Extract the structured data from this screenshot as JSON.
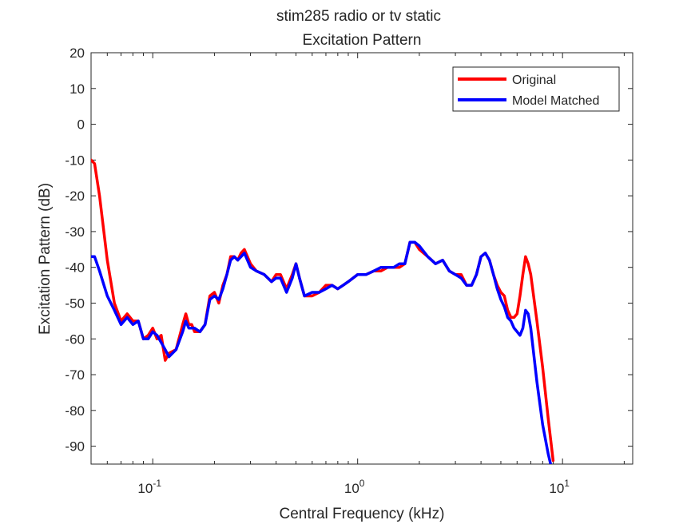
{
  "chart_data": {
    "type": "line",
    "title": "stim285 radio or tv static",
    "subtitle": "Excitation Pattern",
    "xlabel": "Central Frequency (kHz)",
    "ylabel": "Excitation Pattern (dB)",
    "xscale": "log",
    "xlim": [
      0.05,
      22
    ],
    "ylim": [
      -95,
      20
    ],
    "yticks": [
      20,
      10,
      0,
      -10,
      -20,
      -30,
      -40,
      -50,
      -60,
      -70,
      -80,
      -90
    ],
    "xticks": [
      {
        "value": 0.1,
        "base": "10",
        "exp": "-1"
      },
      {
        "value": 1,
        "base": "10",
        "exp": "0"
      },
      {
        "value": 10,
        "base": "10",
        "exp": "1"
      }
    ],
    "grid": false,
    "legend_position": "top-right",
    "series": [
      {
        "name": "Original",
        "color": "#ff0000",
        "x": [
          0.05,
          0.052,
          0.055,
          0.06,
          0.065,
          0.07,
          0.075,
          0.08,
          0.085,
          0.09,
          0.095,
          0.1,
          0.105,
          0.11,
          0.115,
          0.12,
          0.13,
          0.14,
          0.145,
          0.15,
          0.155,
          0.16,
          0.17,
          0.18,
          0.19,
          0.2,
          0.21,
          0.22,
          0.23,
          0.24,
          0.25,
          0.26,
          0.27,
          0.28,
          0.3,
          0.32,
          0.35,
          0.38,
          0.4,
          0.42,
          0.45,
          0.48,
          0.5,
          0.52,
          0.55,
          0.6,
          0.65,
          0.7,
          0.75,
          0.8,
          0.85,
          0.9,
          1.0,
          1.1,
          1.2,
          1.3,
          1.4,
          1.5,
          1.6,
          1.7,
          1.8,
          1.9,
          2.0,
          2.2,
          2.4,
          2.6,
          2.8,
          3.0,
          3.2,
          3.4,
          3.6,
          3.8,
          4.0,
          4.2,
          4.4,
          4.6,
          4.8,
          5.0,
          5.2,
          5.4,
          5.6,
          5.8,
          6.0,
          6.2,
          6.4,
          6.6,
          6.8,
          7.0,
          7.5,
          8.0,
          8.5,
          9.0
        ],
        "y": [
          -10,
          -11,
          -20,
          -38,
          -50,
          -55,
          -53,
          -55,
          -55,
          -60,
          -59,
          -57,
          -60,
          -59,
          -66,
          -64,
          -63,
          -56,
          -53,
          -56,
          -56,
          -58,
          -58,
          -56,
          -48,
          -47,
          -50,
          -45,
          -42,
          -37,
          -37,
          -38,
          -36,
          -35,
          -39,
          -41,
          -42,
          -44,
          -42,
          -42,
          -46,
          -42,
          -39,
          -43,
          -48,
          -48,
          -47,
          -45,
          -45,
          -46,
          -45,
          -44,
          -42,
          -42,
          -41,
          -41,
          -40,
          -40,
          -40,
          -39,
          -33,
          -33,
          -35,
          -37,
          -39,
          -38,
          -41,
          -42,
          -42,
          -45,
          -45,
          -42,
          -37,
          -36,
          -38,
          -42,
          -45,
          -47,
          -48,
          -52,
          -54,
          -54,
          -53,
          -48,
          -42,
          -37,
          -39,
          -42,
          -55,
          -68,
          -82,
          -94
        ]
      },
      {
        "name": "Model Matched",
        "color": "#0000ff",
        "x": [
          0.05,
          0.052,
          0.055,
          0.06,
          0.065,
          0.07,
          0.075,
          0.08,
          0.085,
          0.09,
          0.095,
          0.1,
          0.105,
          0.11,
          0.115,
          0.12,
          0.13,
          0.14,
          0.145,
          0.15,
          0.155,
          0.16,
          0.17,
          0.18,
          0.19,
          0.2,
          0.21,
          0.22,
          0.23,
          0.24,
          0.25,
          0.26,
          0.27,
          0.28,
          0.3,
          0.32,
          0.35,
          0.38,
          0.4,
          0.42,
          0.45,
          0.48,
          0.5,
          0.52,
          0.55,
          0.6,
          0.65,
          0.7,
          0.75,
          0.8,
          0.85,
          0.9,
          1.0,
          1.1,
          1.2,
          1.3,
          1.4,
          1.5,
          1.6,
          1.7,
          1.8,
          1.9,
          2.0,
          2.2,
          2.4,
          2.6,
          2.8,
          3.0,
          3.2,
          3.4,
          3.6,
          3.8,
          4.0,
          4.2,
          4.4,
          4.6,
          4.8,
          5.0,
          5.2,
          5.4,
          5.6,
          5.8,
          6.0,
          6.2,
          6.4,
          6.6,
          6.8,
          7.0,
          7.5,
          8.0,
          8.5,
          9.0
        ],
        "y": [
          -37,
          -37,
          -41,
          -48,
          -52,
          -56,
          -54,
          -56,
          -55,
          -60,
          -60,
          -58,
          -59,
          -61,
          -63,
          -65,
          -63,
          -58,
          -55,
          -57,
          -57,
          -57,
          -58,
          -56,
          -49,
          -48,
          -49,
          -46,
          -42,
          -38,
          -37,
          -38,
          -37,
          -36,
          -40,
          -41,
          -42,
          -44,
          -43,
          -43,
          -47,
          -43,
          -39,
          -43,
          -48,
          -47,
          -47,
          -46,
          -45,
          -46,
          -45,
          -44,
          -42,
          -42,
          -41,
          -40,
          -40,
          -40,
          -39,
          -39,
          -33,
          -33,
          -34,
          -37,
          -39,
          -38,
          -41,
          -42,
          -43,
          -45,
          -45,
          -42,
          -37,
          -36,
          -38,
          -42,
          -46,
          -49,
          -51,
          -54,
          -55,
          -57,
          -58,
          -59,
          -57,
          -52,
          -53,
          -57,
          -72,
          -84,
          -92,
          -98
        ]
      }
    ]
  }
}
